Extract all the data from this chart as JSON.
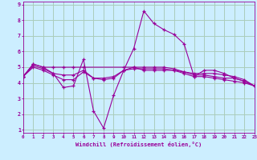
{
  "background_color": "#cceeff",
  "grid_color": "#aaccbb",
  "line_color": "#990099",
  "xlabel": "Windchill (Refroidissement éolien,°C)",
  "xlim": [
    0,
    23
  ],
  "ylim": [
    0.8,
    9.2
  ],
  "yticks": [
    1,
    2,
    3,
    4,
    5,
    6,
    7,
    8,
    9
  ],
  "xticks": [
    0,
    1,
    2,
    3,
    4,
    5,
    6,
    7,
    8,
    9,
    10,
    11,
    12,
    13,
    14,
    15,
    16,
    17,
    18,
    19,
    20,
    21,
    22,
    23
  ],
  "series1": {
    "x": [
      0,
      1,
      2,
      3,
      4,
      5,
      6,
      7,
      8,
      9,
      10,
      11,
      12,
      13,
      14,
      15,
      16,
      17,
      18,
      19,
      20,
      21,
      22,
      23
    ],
    "y": [
      4.4,
      5.2,
      5.0,
      4.6,
      3.7,
      3.8,
      5.5,
      2.2,
      1.1,
      3.2,
      4.8,
      6.2,
      8.6,
      7.8,
      7.4,
      7.1,
      6.5,
      4.4,
      4.8,
      4.8,
      4.6,
      4.3,
      4.1,
      3.8
    ]
  },
  "series2": {
    "x": [
      0,
      1,
      2,
      3,
      4,
      5,
      6,
      10,
      11,
      12,
      13,
      14,
      15,
      16,
      17,
      18,
      19,
      20,
      21,
      22,
      23
    ],
    "y": [
      4.4,
      5.2,
      5.0,
      5.0,
      5.0,
      5.0,
      5.0,
      5.0,
      5.0,
      4.8,
      4.8,
      4.8,
      4.8,
      4.7,
      4.6,
      4.6,
      4.6,
      4.5,
      4.4,
      4.2,
      3.8
    ]
  },
  "series3": {
    "x": [
      0,
      1,
      2,
      3,
      4,
      5,
      6,
      7,
      8,
      9,
      10,
      11,
      12,
      13,
      14,
      15,
      16,
      17,
      18,
      19,
      20,
      21,
      22,
      23
    ],
    "y": [
      4.4,
      5.1,
      4.9,
      4.6,
      4.5,
      4.5,
      4.8,
      4.3,
      4.2,
      4.3,
      4.8,
      5.0,
      5.0,
      5.0,
      5.0,
      4.9,
      4.7,
      4.5,
      4.5,
      4.4,
      4.3,
      4.3,
      4.1,
      3.8
    ]
  },
  "series4": {
    "x": [
      0,
      1,
      2,
      3,
      4,
      5,
      6,
      7,
      8,
      9,
      10,
      11,
      12,
      13,
      14,
      15,
      16,
      17,
      18,
      19,
      20,
      21,
      22,
      23
    ],
    "y": [
      4.4,
      5.0,
      4.8,
      4.5,
      4.2,
      4.2,
      4.7,
      4.3,
      4.3,
      4.4,
      4.8,
      4.9,
      4.9,
      4.9,
      4.9,
      4.8,
      4.6,
      4.4,
      4.4,
      4.3,
      4.2,
      4.1,
      4.0,
      3.8
    ]
  }
}
